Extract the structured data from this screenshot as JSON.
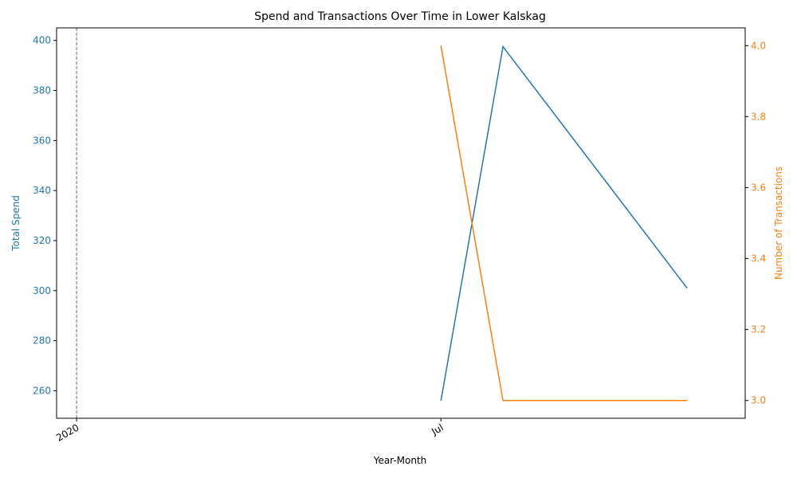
{
  "chart_data": {
    "type": "line",
    "title": "Spend and Transactions Over Time in Lower Kalskag",
    "xlabel": "Year-Month",
    "x_ticks": [
      {
        "date": "2020-01",
        "label": "2020"
      },
      {
        "date": "2020-07",
        "label": "Jul"
      }
    ],
    "xlim": [
      "2019-12-22",
      "2020-11-30"
    ],
    "vline": {
      "date": "2020-01",
      "style": "dashed",
      "color": "#7f7f7f"
    },
    "left_axis": {
      "label": "Total Spend",
      "color": "#1f77b4",
      "ylim": [
        249,
        405
      ],
      "ticks": [
        260,
        280,
        300,
        320,
        340,
        360,
        380,
        400
      ]
    },
    "right_axis": {
      "label": "Number of Transactions",
      "color": "#ff7f0e",
      "ylim": [
        2.95,
        4.05
      ],
      "ticks": [
        "3.0",
        "3.2",
        "3.4",
        "3.6",
        "3.8",
        "4.0"
      ]
    },
    "series": [
      {
        "axis": "left",
        "color": "#1f77b4",
        "x": [
          "2020-07-01",
          "2020-08-01",
          "2020-11-01"
        ],
        "values": [
          256,
          397.5,
          301
        ]
      },
      {
        "axis": "right",
        "color": "#ff7f0e",
        "x": [
          "2020-07-01",
          "2020-08-01",
          "2020-11-01"
        ],
        "values": [
          4.0,
          3.0,
          3.0
        ]
      }
    ]
  }
}
